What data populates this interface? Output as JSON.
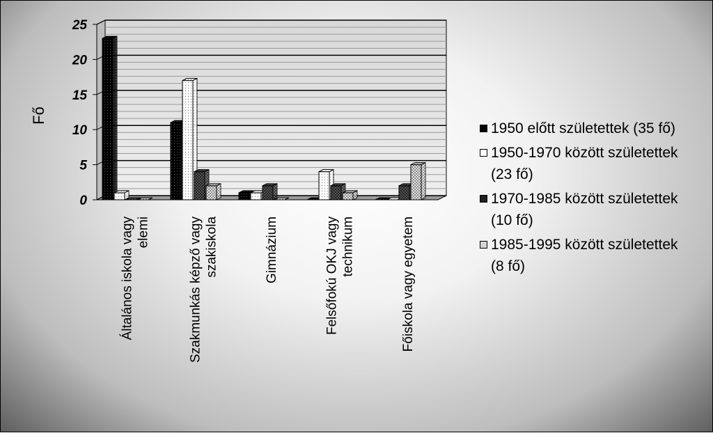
{
  "chart_data": {
    "type": "bar",
    "ylabel": "Fő",
    "xlabel": "",
    "ylim": [
      0,
      25
    ],
    "yticks": [
      "0",
      "5",
      "10",
      "15",
      "20",
      "25"
    ],
    "grid": true,
    "legend_position": "right",
    "categories": [
      "Általános iskola vagy elemi",
      "Szakmunkás képző vagy szakiskola",
      "Gimnázium",
      "Felsőfokú OKJ vagy technikum",
      "Főiskola vagy egyetem"
    ],
    "series": [
      {
        "name": "1950 előtt születettek (35 fő)",
        "values": [
          23,
          11,
          1,
          0,
          0
        ],
        "color": "#1a1a1a"
      },
      {
        "name": "1950-1970 között születettek (23 fő)",
        "values": [
          1,
          17,
          1,
          4,
          0
        ],
        "color": "#f4f4f4"
      },
      {
        "name": "1970-1985 között születettek (10 fő)",
        "values": [
          0,
          4,
          2,
          2,
          2
        ],
        "color": "#333333"
      },
      {
        "name": "1985-1995 között születettek (8 fő)",
        "values": [
          0,
          2,
          0,
          1,
          5
        ],
        "color": "#c8c8c8"
      }
    ]
  }
}
